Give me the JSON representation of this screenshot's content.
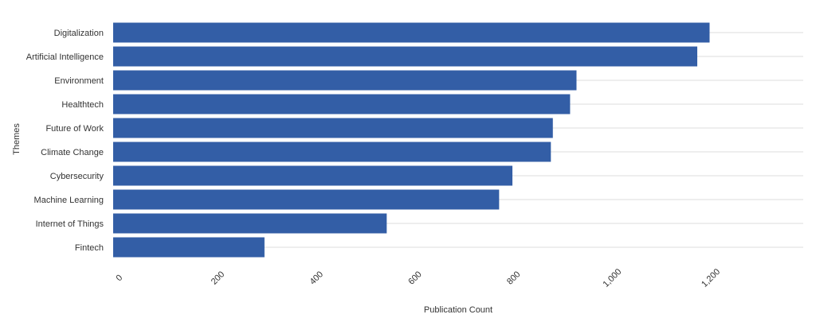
{
  "chart_data": {
    "type": "bar",
    "orientation": "horizontal",
    "title": "",
    "xlabel": "Publication Count",
    "ylabel": "Themes",
    "categories": [
      "Digitalization",
      "Artificial Intelligence",
      "Environment",
      "Healthtech",
      "Future of Work",
      "Climate Change",
      "Cybersecurity",
      "Machine Learning",
      "Internet of Things",
      "Fintech"
    ],
    "series": [
      {
        "values": [
          1210,
          1185,
          940,
          927,
          892,
          888,
          810,
          783,
          555,
          307
        ]
      }
    ],
    "xlim": [
      0,
      1400
    ],
    "x_ticks": [
      0,
      200,
      400,
      600,
      800,
      1000,
      1200
    ],
    "x_tick_labels": [
      "0",
      "200",
      "400",
      "600",
      "800",
      "1,000",
      "1,200"
    ],
    "grid": "horizontal",
    "legend": "none",
    "bar_color": "#335ea6",
    "grid_color": "#dddddd"
  }
}
